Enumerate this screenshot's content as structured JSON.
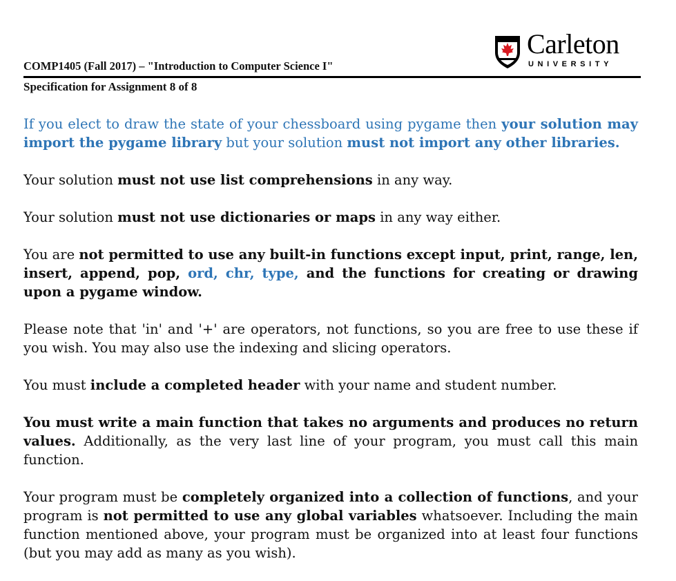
{
  "header": {
    "course_line": "COMP1405 (Fall 2017) – \"Introduction to Computer Science I\"",
    "spec_line": "Specification for Assignment 8 of 8",
    "logo": {
      "wordmark": "Carleton",
      "subtext": "UNIVERSITY",
      "icon": "shield-maple-leaf-icon",
      "colors": {
        "shield": "#000000",
        "leaf": "#d71920"
      }
    }
  },
  "colors": {
    "accent_blue": "#2e75b6",
    "text": "#111111"
  },
  "paragraphs": {
    "p1": {
      "s1": "If you elect to draw the state of your chessboard using pygame then ",
      "s2": "your solution may import the pygame library",
      "s3": " but your solution ",
      "s4": "must not import any other libraries."
    },
    "p2": {
      "s1": "Your solution ",
      "s2": "must not use list comprehensions",
      "s3": " in any way."
    },
    "p3": {
      "s1": "Your solution ",
      "s2": "must not use dictionaries or maps",
      "s3": " in any way either."
    },
    "p4": {
      "s1": "You are ",
      "s2": "not permitted to use any built-in functions except input, print, range, len, insert, append, pop, ",
      "s3": "ord, chr, type,",
      "s4": " and the functions for creating or drawing upon a pygame window."
    },
    "p5": {
      "s1": "Please note that 'in' and '+' are operators, not functions, so you are free to use these if you wish. You may also use the indexing and slicing operators."
    },
    "p6": {
      "s1": "You must ",
      "s2": "include a completed header",
      "s3": " with your name and student number."
    },
    "p7": {
      "s1": "You must write a main function that takes no arguments and produces no return values.",
      "s2": " Additionally, as the very last line of your program, you must call this main function."
    },
    "p8": {
      "s1": "Your program must be ",
      "s2": "completely organized into a collection of functions",
      "s3": ", and your program is ",
      "s4": "not permitted to use any global variables",
      "s5": " whatsoever. Including the main function mentioned above, your program must be organized into at least four functions (but you may add as many as you wish)."
    }
  }
}
